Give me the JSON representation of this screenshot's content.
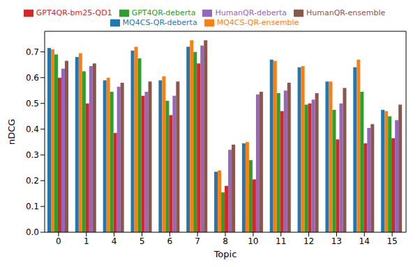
{
  "chart_data": {
    "type": "bar",
    "x_label": "Topic",
    "y_label": "nDCG",
    "categories": [
      "0",
      "1",
      "4",
      "5",
      "6",
      "7",
      "8",
      "10",
      "11",
      "12",
      "13",
      "14",
      "15"
    ],
    "series": [
      {
        "name": "MQ4CS-QR-deberta",
        "color": "#1f77b4",
        "values": [
          0.715,
          0.68,
          0.59,
          0.705,
          0.59,
          0.72,
          0.235,
          0.345,
          0.67,
          0.64,
          0.585,
          0.64,
          0.475
        ]
      },
      {
        "name": "MQ4CS-QR-ensemble",
        "color": "#ff7f0e",
        "values": [
          0.71,
          0.695,
          0.6,
          0.72,
          0.605,
          0.745,
          0.24,
          0.35,
          0.665,
          0.645,
          0.585,
          0.67,
          0.47
        ]
      },
      {
        "name": "GPT4QR-deberta",
        "color": "#2ca02c",
        "values": [
          0.69,
          0.625,
          0.545,
          0.675,
          0.51,
          0.7,
          0.155,
          0.28,
          0.54,
          0.495,
          0.475,
          0.545,
          0.45
        ]
      },
      {
        "name": "GPT4QR-bm25-QD1",
        "color": "#d62728",
        "values": [
          0.6,
          0.5,
          0.385,
          0.53,
          0.455,
          0.655,
          0.18,
          0.205,
          0.47,
          0.5,
          0.36,
          0.345,
          0.365
        ]
      },
      {
        "name": "HumanQR-deberta",
        "color": "#9467bd",
        "values": [
          0.635,
          0.645,
          0.565,
          0.545,
          0.53,
          0.725,
          0.32,
          0.535,
          0.55,
          0.515,
          0.5,
          0.405,
          0.435
        ]
      },
      {
        "name": "HumanQR-ensemble",
        "color": "#8c564b",
        "values": [
          0.665,
          0.655,
          0.58,
          0.585,
          0.585,
          0.745,
          0.34,
          0.545,
          0.58,
          0.54,
          0.56,
          0.42,
          0.495
        ]
      }
    ],
    "ylim": [
      0,
      0.78
    ],
    "yticks": [
      {
        "value": 0,
        "label": "0.0"
      },
      {
        "value": 0.1,
        "label": "0.1"
      },
      {
        "value": 0.2,
        "label": "0.2"
      },
      {
        "value": 0.3,
        "label": "0.3"
      },
      {
        "value": 0.4,
        "label": "0.4"
      },
      {
        "value": 0.5,
        "label": "0.5"
      },
      {
        "value": 0.6,
        "label": "0.6"
      },
      {
        "value": 0.7,
        "label": "0.7"
      }
    ],
    "legend": "top",
    "grid": false
  }
}
